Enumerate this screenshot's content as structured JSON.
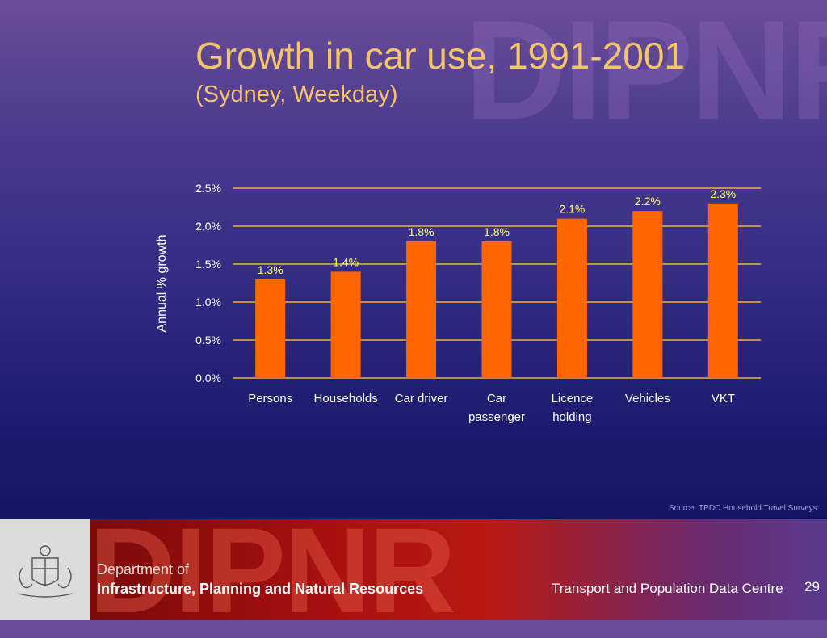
{
  "watermark": "DIPNR",
  "title": "Growth in car use, 1991-2001",
  "subtitle": "(Sydney, Weekday)",
  "chart_data": {
    "type": "bar",
    "categories": [
      [
        "Persons"
      ],
      [
        "Households"
      ],
      [
        "Car driver"
      ],
      [
        "Car",
        "passenger"
      ],
      [
        "Licence",
        "holding"
      ],
      [
        "Vehicles"
      ],
      [
        "VKT"
      ]
    ],
    "values": [
      1.3,
      1.4,
      1.8,
      1.8,
      2.1,
      2.2,
      2.3
    ],
    "value_labels": [
      "1.3%",
      "1.4%",
      "1.8%",
      "1.8%",
      "2.1%",
      "2.2%",
      "2.3%"
    ],
    "ylabel": "Annual % growth",
    "ylim": [
      0,
      2.5
    ],
    "yticks": [
      0,
      0.5,
      1.0,
      1.5,
      2.0,
      2.5
    ],
    "ytick_labels": [
      "0.0%",
      "0.5%",
      "1.0%",
      "1.5%",
      "2.0%",
      "2.5%"
    ],
    "grid": true,
    "colors": {
      "bar": "#ff6600",
      "grid": "#f0b030",
      "label": "#ffff66",
      "axis_text": "#ffffff"
    }
  },
  "source": "Source: TPDC Household Travel Surveys",
  "footer": {
    "dept_line1": "Department of",
    "dept_line2": "Infrastructure, Planning and Natural Resources",
    "centre": "Transport and Population Data Centre",
    "page_number": "29",
    "watermark": "DIPNR"
  }
}
